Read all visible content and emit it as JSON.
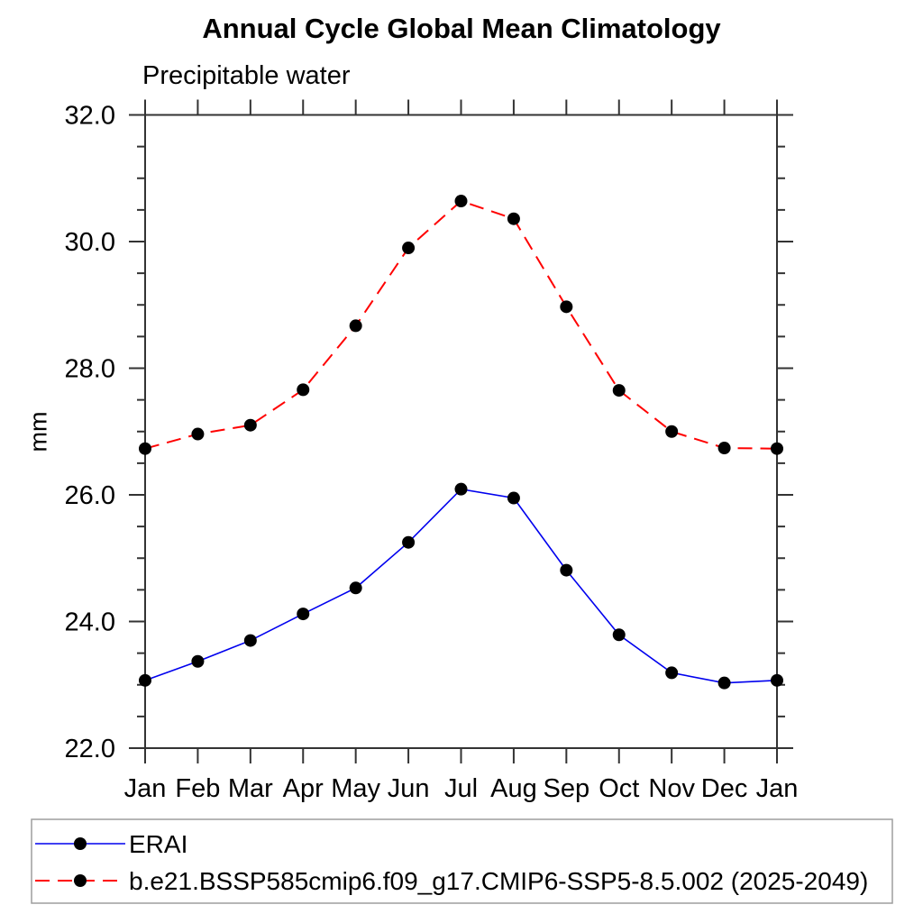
{
  "title": "Annual Cycle Global Mean Climatology",
  "chart_data": {
    "type": "line",
    "title": "Annual Cycle Global Mean Climatology",
    "subtitle": "Precipitable water",
    "xlabel": "",
    "ylabel": "mm",
    "categories": [
      "Jan",
      "Feb",
      "Mar",
      "Apr",
      "May",
      "Jun",
      "Jul",
      "Aug",
      "Sep",
      "Oct",
      "Nov",
      "Dec",
      "Jan"
    ],
    "ylim": [
      22.0,
      32.0
    ],
    "ytick_interval": 2.0,
    "ytick_minor_interval": 0.5,
    "ytick_labels": [
      "22.0",
      "24.0",
      "26.0",
      "28.0",
      "30.0",
      "32.0"
    ],
    "grid": false,
    "legend_position": "bottom-box",
    "series": [
      {
        "name": "ERAI",
        "color": "#0000ee",
        "line_style": "solid",
        "line_width": 1.6,
        "marker": "filled-circle",
        "marker_color": "#000000",
        "values": [
          23.07,
          23.37,
          23.7,
          24.12,
          24.53,
          25.25,
          26.09,
          25.95,
          24.81,
          23.79,
          23.19,
          23.03,
          23.07
        ]
      },
      {
        "name": "b.e21.BSSP585cmip6.f09_g17.CMIP6-SSP5-8.5.002 (2025-2049)",
        "color": "#ff0000",
        "line_style": "dashed",
        "line_width": 2,
        "marker": "filled-circle",
        "marker_color": "#000000",
        "values": [
          26.73,
          26.96,
          27.1,
          27.66,
          28.67,
          29.9,
          30.64,
          30.36,
          28.97,
          27.65,
          27.0,
          26.74,
          26.73
        ]
      }
    ]
  },
  "colors": {
    "background": "#ffffff",
    "axis": "#333333",
    "text": "#000000",
    "legend_border": "#9e9e9e"
  }
}
